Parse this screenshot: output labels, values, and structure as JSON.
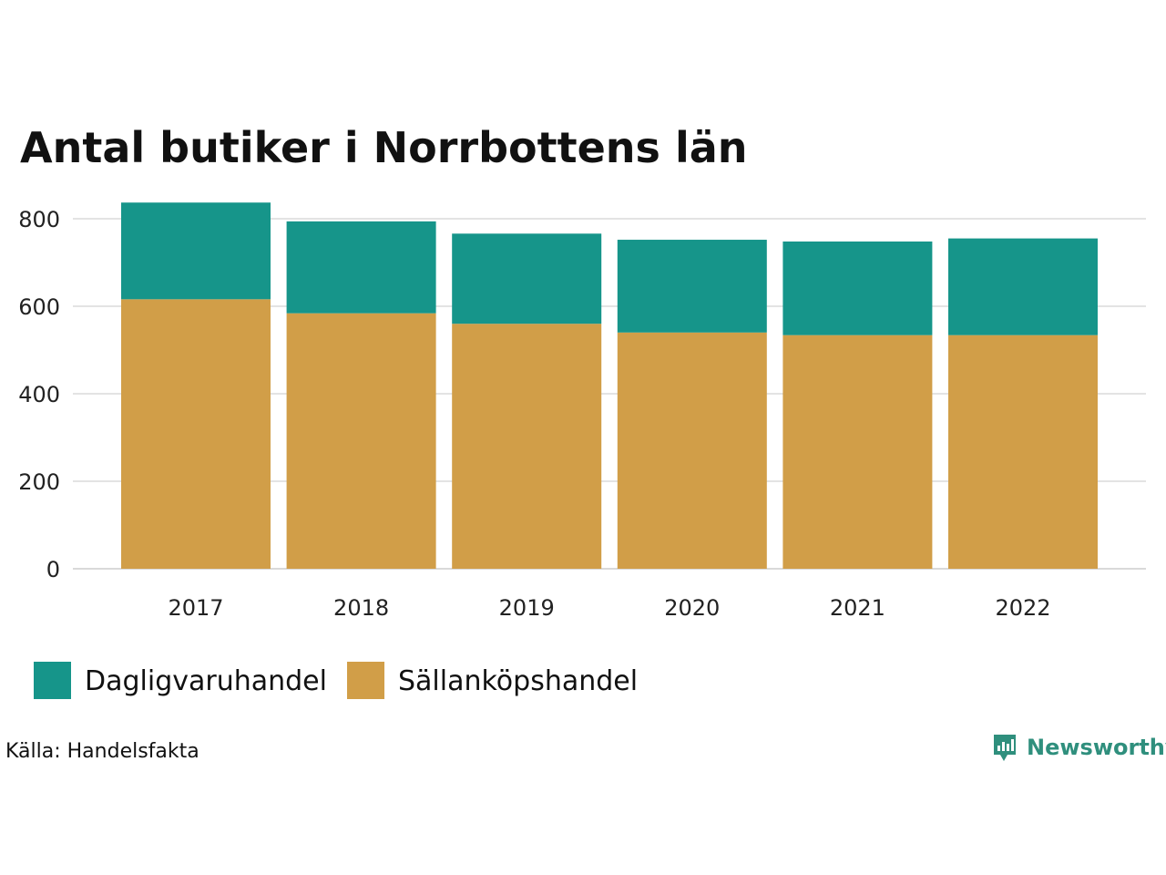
{
  "chart_data": {
    "type": "bar",
    "stacked": true,
    "title": "Antal butiker i Norrbottens län",
    "xlabel": "",
    "ylabel": "",
    "categories": [
      "2017",
      "2018",
      "2019",
      "2020",
      "2021",
      "2022"
    ],
    "series": [
      {
        "name": "Sällanköpshandel",
        "color": "#d19e48",
        "values": [
          616,
          584,
          560,
          540,
          534,
          534
        ]
      },
      {
        "name": "Dagligvaruhandel",
        "color": "#16958a",
        "values": [
          221,
          210,
          206,
          212,
          214,
          221
        ]
      }
    ],
    "ylim": [
      0,
      840
    ],
    "yticks": [
      0,
      200,
      400,
      600,
      800
    ],
    "grid": true,
    "legend_position": "bottom-left",
    "legend_order": [
      "Dagligvaruhandel",
      "Sällanköpshandel"
    ]
  },
  "footer": {
    "source": "Källa: Handelsfakta",
    "brand": "Newsworthy",
    "brand_color": "#2f8f7d"
  },
  "colors": {
    "gridline": "#e3e3e3",
    "baseline": "#d9d9d9"
  }
}
